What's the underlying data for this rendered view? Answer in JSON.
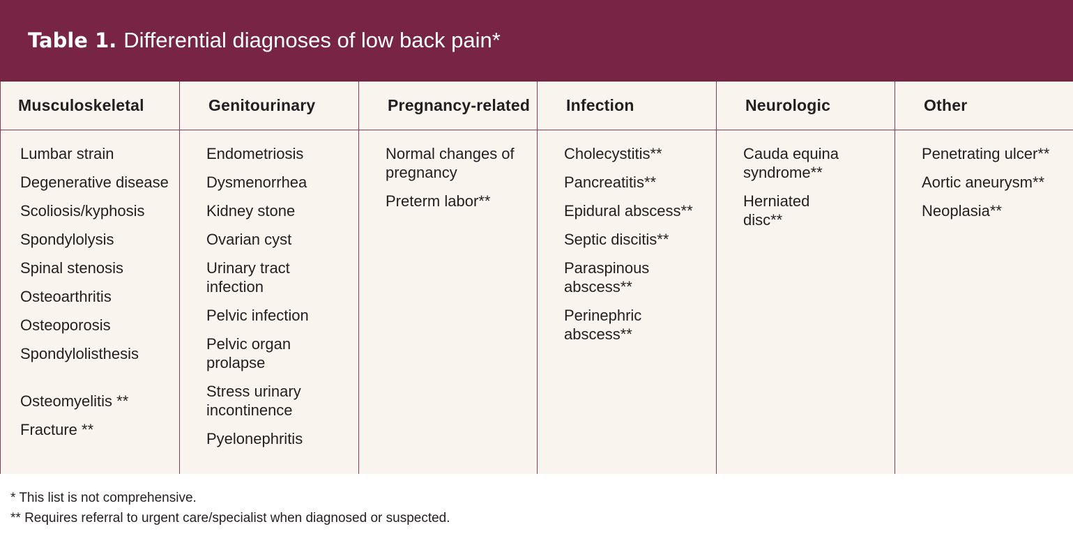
{
  "title": {
    "label": "Table 1.",
    "text": "Differential diagnoses of low back pain*"
  },
  "columns": [
    {
      "header": "Musculoskeletal",
      "items": [
        "Lumbar strain",
        "Degenerative disease",
        "Scoliosis/kyphosis",
        "Spondylolysis",
        "Spinal stenosis",
        "Osteoarthritis",
        "Osteoporosis",
        "Spondylolisthesis",
        "Osteomyelitis **",
        "Fracture **"
      ]
    },
    {
      "header": "Genitourinary",
      "items": [
        "Endometriosis",
        "Dysmenorrhea",
        "Kidney stone",
        "Ovarian cyst",
        "Urinary tract infection",
        "Pelvic infection",
        "Pelvic organ prolapse",
        "Stress urinary incontinence",
        "Pyelonephritis"
      ]
    },
    {
      "header": "Pregnancy-related",
      "items": [
        "Normal changes of pregnancy",
        "Preterm labor**"
      ]
    },
    {
      "header": "Infection",
      "items": [
        "Cholecystitis**",
        "Pancreatitis**",
        "Epidural abscess**",
        "Septic discitis**",
        "Paraspinous abscess**",
        "Perinephric abscess**"
      ]
    },
    {
      "header": "Neurologic",
      "items": [
        "Cauda equina syndrome**",
        "Herniated disc**"
      ]
    },
    {
      "header": "Other",
      "items": [
        "Penetrating ulcer**",
        "Aortic aneurysm**",
        "Neoplasia**"
      ]
    }
  ],
  "footnotes": [
    "* This list is not comprehensive.",
    "** Requires referral to urgent care/specialist when diagnosed or suspected."
  ],
  "colors": {
    "title_bar": "#772445",
    "table_background": "#f9f4ee",
    "rule": "#8b3a5a"
  }
}
